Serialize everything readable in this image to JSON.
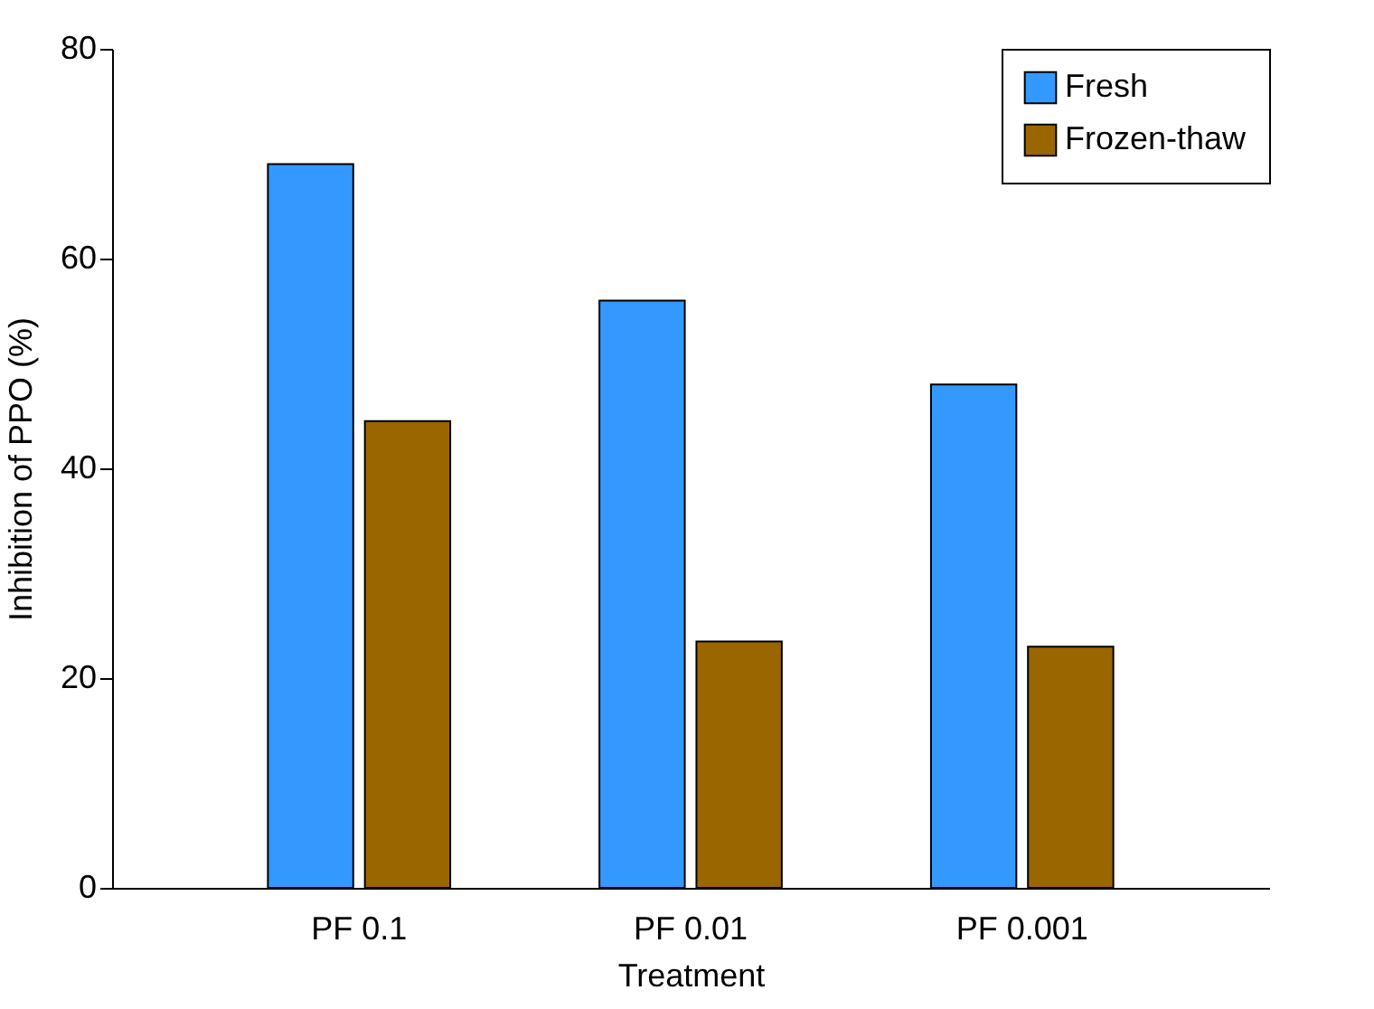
{
  "chart_data": {
    "type": "bar",
    "xlabel": "Treatment",
    "ylabel": "Inhibition of PPO (%)",
    "categories": [
      "PF 0.1",
      "PF 0.01",
      "PF 0.001"
    ],
    "series": [
      {
        "name": "Fresh",
        "color": "#3399ff",
        "values": [
          69,
          56,
          48
        ]
      },
      {
        "name": "Frozen-thaw",
        "color": "#996600",
        "values": [
          44.5,
          23.5,
          23
        ]
      }
    ],
    "ylim": [
      0,
      80
    ],
    "yticks": [
      0,
      20,
      40,
      60,
      80
    ],
    "grid": false,
    "legend": "top right"
  }
}
